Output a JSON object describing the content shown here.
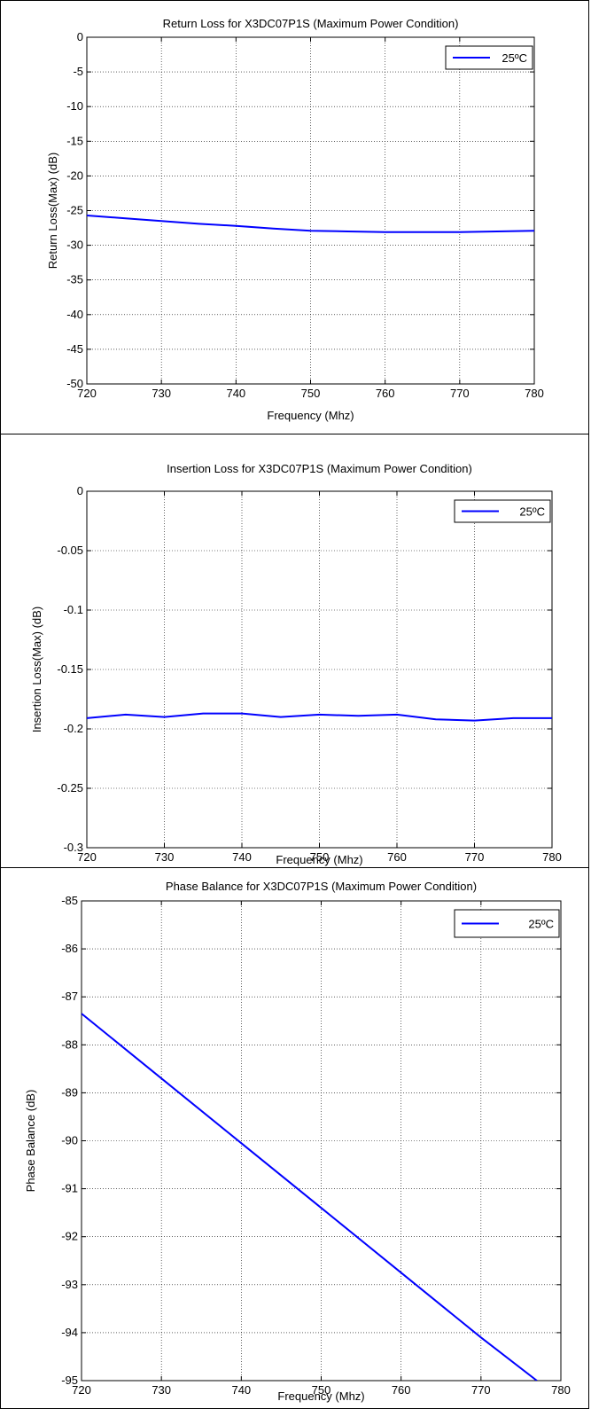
{
  "chart_data": [
    {
      "type": "line",
      "title": "Return Loss for X3DC07P1S (Maximum Power Condition)",
      "xlabel": "Frequency (Mhz)",
      "ylabel": "Return Loss(Max) (dB)",
      "xlim": [
        720,
        780
      ],
      "ylim": [
        -50,
        0
      ],
      "xticks": [
        720,
        730,
        740,
        750,
        760,
        770,
        780
      ],
      "yticks": [
        0,
        -5,
        -10,
        -15,
        -20,
        -25,
        -30,
        -35,
        -40,
        -45,
        -50
      ],
      "grid": true,
      "legend": "top-right",
      "series": [
        {
          "name": "25ºC",
          "color": "#0000ff",
          "x": [
            720,
            725,
            730,
            735,
            740,
            745,
            750,
            755,
            760,
            765,
            770,
            775,
            780
          ],
          "y": [
            -25.7,
            -26.1,
            -26.5,
            -26.9,
            -27.2,
            -27.6,
            -27.9,
            -28.0,
            -28.1,
            -28.1,
            -28.1,
            -28.0,
            -27.9
          ]
        }
      ]
    },
    {
      "type": "line",
      "title": "Insertion Loss for X3DC07P1S (Maximum Power Condition)",
      "xlabel": "Frequency (Mhz)",
      "ylabel": "Insertion Loss(Max) (dB)",
      "xlim": [
        720,
        780
      ],
      "ylim": [
        -0.3,
        0
      ],
      "xticks": [
        720,
        730,
        740,
        750,
        760,
        770,
        780
      ],
      "yticks": [
        0,
        -0.05,
        -0.1,
        -0.15,
        -0.2,
        -0.25,
        -0.3
      ],
      "ytick_labels": [
        "0",
        "-0.05",
        "-0.1",
        "-0.15",
        "-0.2",
        "-0.25",
        "-0.3"
      ],
      "grid": true,
      "legend": "top-right",
      "series": [
        {
          "name": "25ºC",
          "color": "#0000ff",
          "x": [
            720,
            725,
            730,
            735,
            740,
            745,
            750,
            755,
            760,
            765,
            770,
            775,
            780
          ],
          "y": [
            -0.191,
            -0.188,
            -0.19,
            -0.187,
            -0.187,
            -0.19,
            -0.188,
            -0.189,
            -0.188,
            -0.192,
            -0.193,
            -0.191,
            -0.191
          ]
        }
      ]
    },
    {
      "type": "line",
      "title": "Phase Balance for X3DC07P1S (Maximum Power Condition)",
      "xlabel": "Frequency (Mhz)",
      "ylabel": "Phase Balance (dB)",
      "xlim": [
        720,
        780
      ],
      "ylim": [
        -95,
        -85
      ],
      "xticks": [
        720,
        730,
        740,
        750,
        760,
        770,
        780
      ],
      "yticks": [
        -85,
        -86,
        -87,
        -88,
        -89,
        -90,
        -91,
        -92,
        -93,
        -94,
        -95
      ],
      "grid": true,
      "legend": "top-right",
      "series": [
        {
          "name": "25ºC",
          "color": "#0000ff",
          "x": [
            720,
            730,
            740,
            750,
            760,
            770,
            777
          ],
          "y": [
            -87.35,
            -88.7,
            -90.05,
            -91.4,
            -92.75,
            -94.1,
            -95.0
          ]
        }
      ]
    }
  ]
}
